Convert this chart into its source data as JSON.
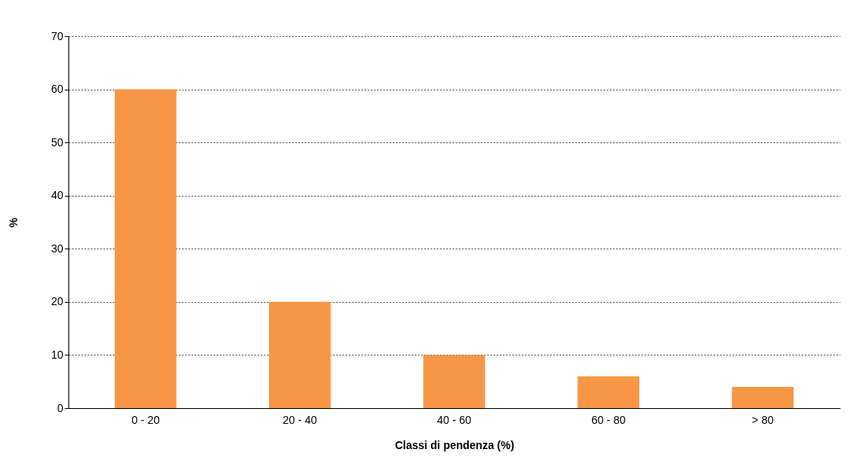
{
  "chart_data": {
    "type": "bar",
    "xlabel": "Classi di pendenza (%)",
    "ylabel": "%",
    "categories": [
      "0 - 20",
      "20 - 40",
      "40 - 60",
      "60 - 80",
      "> 80"
    ],
    "values": [
      60,
      20,
      10,
      6,
      4
    ],
    "color": "#f79646",
    "ylim": [
      0,
      70
    ],
    "yticks": [
      0,
      10,
      20,
      30,
      40,
      50,
      60,
      70
    ],
    "grid": "y"
  }
}
